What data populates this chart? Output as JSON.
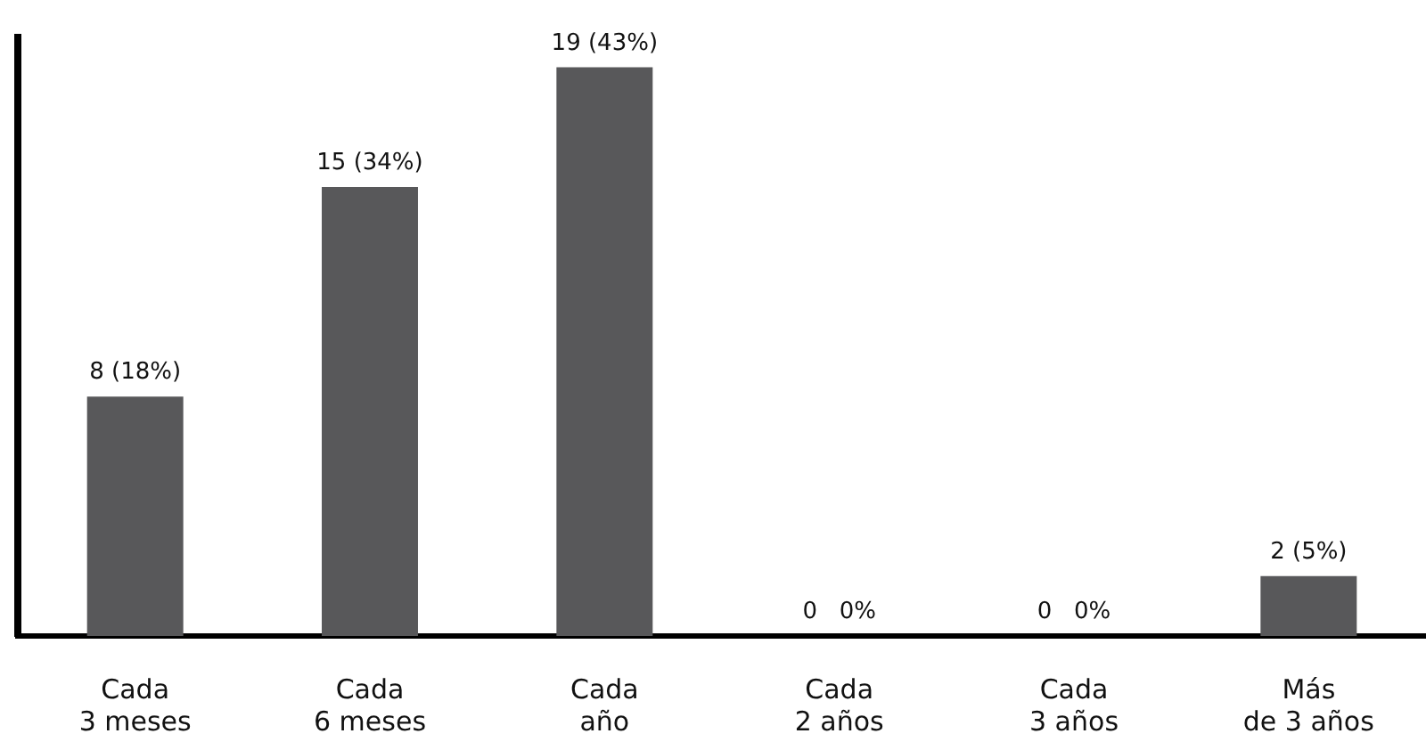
{
  "chart_data": {
    "type": "bar",
    "categories": [
      "Cada\n3 meses",
      "Cada\n6 meses",
      "Cada\naño",
      "Cada\n2 años",
      "Cada\n3 años",
      "Más\nde 3 años"
    ],
    "values": [
      8,
      15,
      19,
      0,
      0,
      2
    ],
    "color": "#58585a",
    "value_labels": [
      "8 (18%)",
      "15 (34%)",
      "19 (43%)",
      "0   0%",
      "0   0%",
      "2 (5%)"
    ],
    "ylim": [
      0,
      20
    ],
    "tick_labels": "x"
  }
}
